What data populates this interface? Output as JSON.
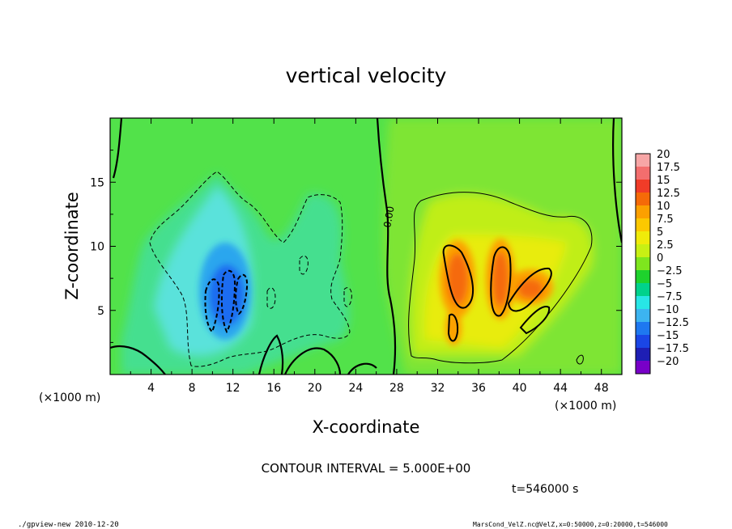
{
  "chart_data": {
    "type": "heatmap",
    "title": "vertical velocity",
    "xlabel": "X-coordinate",
    "ylabel": "Z-coordinate",
    "x_units": "(×1000 m)",
    "y_units": "(×1000 m)",
    "xlim": [
      0,
      50
    ],
    "ylim": [
      0,
      20
    ],
    "x_ticks": [
      4,
      8,
      12,
      16,
      20,
      24,
      28,
      32,
      36,
      40,
      44,
      48
    ],
    "y_ticks": [
      5,
      10,
      15
    ],
    "contour_interval_text": "CONTOUR INTERVAL = 5.000E+00",
    "zero_contour_label": "0.00",
    "time_text": "t=546000 s",
    "footer_left": "./gpview-new  2010-12-20",
    "footer_right": "MarsCond_VelZ.nc@VelZ,x=0:50000,z=0:20000,t=546000",
    "colorbar": {
      "labels": [
        "20",
        "17.5",
        "15",
        "12.5",
        "10",
        "7.5",
        "5",
        "2.5",
        "0",
        "−2.5",
        "−5",
        "−7.5",
        "−10",
        "−12.5",
        "−15",
        "−17.5",
        "−20"
      ],
      "colors": [
        "#f7a6a6",
        "#f36e6e",
        "#f03c28",
        "#f56a08",
        "#fca000",
        "#fcc800",
        "#f0eb0a",
        "#c8f014",
        "#7ee61e",
        "#1ed22d",
        "#00d28c",
        "#28e6e6",
        "#3cb4f0",
        "#1e78f0",
        "#1a46e6",
        "#1e1eb4",
        "#7800c8"
      ]
    },
    "extrema": [
      {
        "x": 11.5,
        "z": 6.0,
        "value": -13,
        "sign": "downdraft"
      },
      {
        "x": 10.5,
        "z": 4.5,
        "value": -11,
        "sign": "downdraft"
      },
      {
        "x": 34.5,
        "z": 7.5,
        "value": 12,
        "sign": "updraft"
      },
      {
        "x": 38.5,
        "z": 6.5,
        "value": 13,
        "sign": "updraft"
      },
      {
        "x": 41.0,
        "z": 6.5,
        "value": 11,
        "sign": "updraft"
      },
      {
        "x": 33.5,
        "z": 4.0,
        "value": 9,
        "sign": "updraft"
      },
      {
        "x": 41.5,
        "z": 4.5,
        "value": 8,
        "sign": "updraft"
      }
    ]
  }
}
